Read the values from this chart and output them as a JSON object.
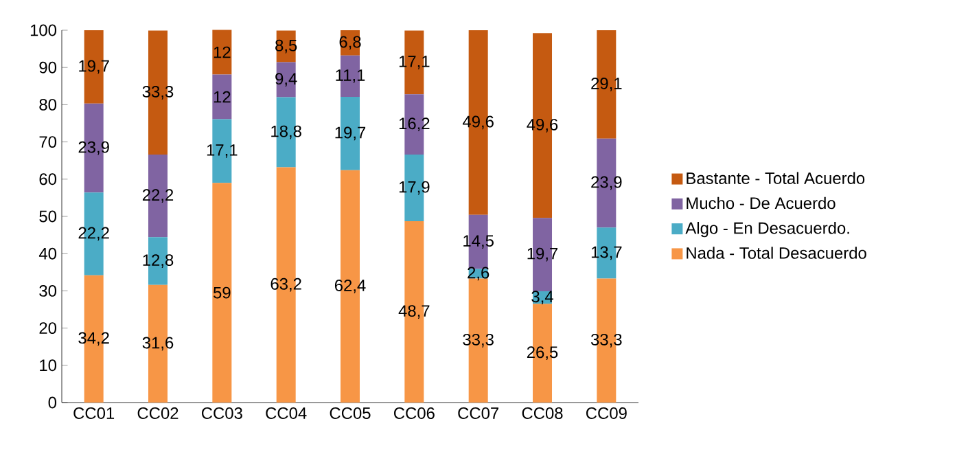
{
  "chart_data": {
    "type": "bar",
    "stacked": true,
    "categories": [
      "CC01",
      "CC02",
      "CC03",
      "CC04",
      "CC05",
      "CC06",
      "CC07",
      "CC08",
      "CC09"
    ],
    "series": [
      {
        "name": "Nada - Total Desacuerdo",
        "color": "#f79646",
        "values": [
          34.2,
          31.6,
          59,
          63.2,
          62.4,
          48.7,
          33.3,
          26.5,
          33.3
        ],
        "value_labels": [
          "34,2",
          "31,6",
          "59",
          "63,2",
          "62,4",
          "48,7",
          "33,3",
          "26,5",
          "33,3"
        ]
      },
      {
        "name": "Algo - En Desacuerdo.",
        "color": "#4bacc6",
        "values": [
          22.2,
          12.8,
          17.1,
          18.8,
          19.7,
          17.9,
          2.6,
          3.4,
          13.7
        ],
        "value_labels": [
          "22,2",
          "12,8",
          "17,1",
          "18,8",
          "19,7",
          "17,9",
          "2,6",
          "3,4",
          "13,7"
        ]
      },
      {
        "name": "Mucho - De Acuerdo",
        "color": "#8064a2",
        "values": [
          23.9,
          22.2,
          12,
          9.4,
          11.1,
          16.2,
          14.5,
          19.7,
          23.9
        ],
        "value_labels": [
          "23,9",
          "22,2",
          "12",
          "9,4",
          "11,1",
          "16,2",
          "14,5",
          "19,7",
          "23,9"
        ]
      },
      {
        "name": "Bastante - Total Acuerdo",
        "color": "#c55a11",
        "values": [
          19.7,
          33.3,
          12,
          8.5,
          6.8,
          17.1,
          49.6,
          49.6,
          29.1
        ],
        "value_labels": [
          "19,7",
          "33,3",
          "12",
          "8,5",
          "6,8",
          "17,1",
          "49,6",
          "49,6",
          "29,1"
        ]
      }
    ],
    "ylim": [
      0,
      100
    ],
    "yticks": [
      0,
      10,
      20,
      30,
      40,
      50,
      60,
      70,
      80,
      90,
      100
    ],
    "legend": "right",
    "grid": false
  }
}
